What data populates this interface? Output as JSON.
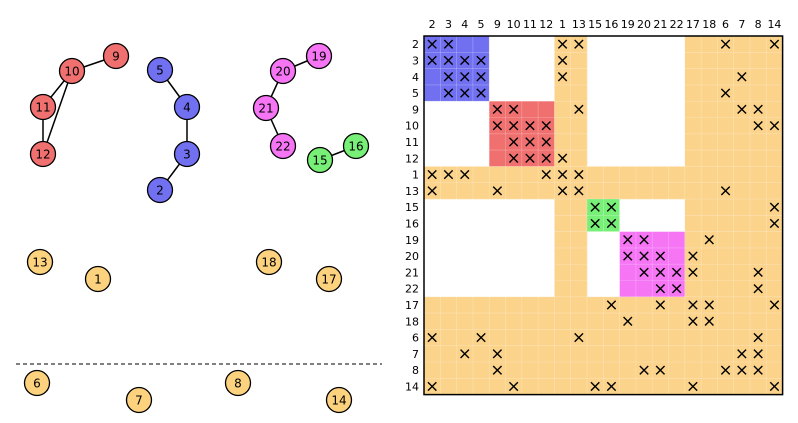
{
  "graph": {
    "nodes": [
      {
        "id": "9",
        "group": "red"
      },
      {
        "id": "10",
        "group": "red"
      },
      {
        "id": "11",
        "group": "red"
      },
      {
        "id": "12",
        "group": "red"
      },
      {
        "id": "5",
        "group": "blue"
      },
      {
        "id": "4",
        "group": "blue"
      },
      {
        "id": "3",
        "group": "blue"
      },
      {
        "id": "2",
        "group": "blue"
      },
      {
        "id": "19",
        "group": "magenta"
      },
      {
        "id": "20",
        "group": "magenta"
      },
      {
        "id": "21",
        "group": "magenta"
      },
      {
        "id": "22",
        "group": "magenta"
      },
      {
        "id": "15",
        "group": "green"
      },
      {
        "id": "16",
        "group": "green"
      },
      {
        "id": "13",
        "group": "orange"
      },
      {
        "id": "1",
        "group": "orange"
      },
      {
        "id": "18",
        "group": "orange"
      },
      {
        "id": "17",
        "group": "orange"
      },
      {
        "id": "6",
        "group": "orange"
      },
      {
        "id": "7",
        "group": "orange"
      },
      {
        "id": "8",
        "group": "orange"
      },
      {
        "id": "14",
        "group": "orange"
      }
    ],
    "edges": [
      [
        "10",
        "9"
      ],
      [
        "10",
        "11"
      ],
      [
        "10",
        "12"
      ],
      [
        "11",
        "12"
      ],
      [
        "5",
        "4"
      ],
      [
        "4",
        "3"
      ],
      [
        "3",
        "2"
      ],
      [
        "20",
        "19"
      ],
      [
        "20",
        "21"
      ],
      [
        "21",
        "22"
      ],
      [
        "15",
        "16"
      ]
    ]
  },
  "matrix": {
    "order": [
      "2",
      "3",
      "4",
      "5",
      "9",
      "10",
      "11",
      "12",
      "1",
      "13",
      "15",
      "16",
      "19",
      "20",
      "21",
      "22",
      "17",
      "18",
      "6",
      "7",
      "8",
      "14"
    ],
    "row_labels": [
      "2",
      "3",
      "4",
      "5",
      "9",
      "10",
      "11",
      "12",
      "1",
      "13",
      "15",
      "16",
      "19",
      "20",
      "21",
      "22",
      "17",
      "18",
      "6",
      "7",
      "8",
      "14"
    ],
    "column_labels": [
      "2",
      "3",
      "4",
      "5",
      "9",
      "10",
      "11",
      "12",
      "1",
      "13",
      "15",
      "16",
      "19",
      "20",
      "21",
      "22",
      "17",
      "18",
      "6",
      "7",
      "8",
      "14"
    ],
    "marker": "×",
    "entries": [
      [
        "2",
        "2"
      ],
      [
        "2",
        "3"
      ],
      [
        "2",
        "1"
      ],
      [
        "2",
        "13"
      ],
      [
        "2",
        "6"
      ],
      [
        "2",
        "14"
      ],
      [
        "3",
        "2"
      ],
      [
        "3",
        "3"
      ],
      [
        "3",
        "4"
      ],
      [
        "3",
        "5"
      ],
      [
        "3",
        "1"
      ],
      [
        "4",
        "3"
      ],
      [
        "4",
        "4"
      ],
      [
        "4",
        "5"
      ],
      [
        "4",
        "1"
      ],
      [
        "4",
        "7"
      ],
      [
        "5",
        "3"
      ],
      [
        "5",
        "4"
      ],
      [
        "5",
        "5"
      ],
      [
        "5",
        "6"
      ],
      [
        "9",
        "9"
      ],
      [
        "9",
        "10"
      ],
      [
        "9",
        "13"
      ],
      [
        "9",
        "7"
      ],
      [
        "9",
        "8"
      ],
      [
        "10",
        "9"
      ],
      [
        "10",
        "10"
      ],
      [
        "10",
        "11"
      ],
      [
        "10",
        "12"
      ],
      [
        "10",
        "8"
      ],
      [
        "10",
        "14"
      ],
      [
        "11",
        "10"
      ],
      [
        "11",
        "11"
      ],
      [
        "11",
        "12"
      ],
      [
        "12",
        "10"
      ],
      [
        "12",
        "11"
      ],
      [
        "12",
        "12"
      ],
      [
        "12",
        "1"
      ],
      [
        "1",
        "2"
      ],
      [
        "1",
        "3"
      ],
      [
        "1",
        "4"
      ],
      [
        "1",
        "12"
      ],
      [
        "1",
        "1"
      ],
      [
        "1",
        "13"
      ],
      [
        "13",
        "2"
      ],
      [
        "13",
        "9"
      ],
      [
        "13",
        "1"
      ],
      [
        "13",
        "13"
      ],
      [
        "13",
        "6"
      ],
      [
        "15",
        "15"
      ],
      [
        "15",
        "16"
      ],
      [
        "15",
        "14"
      ],
      [
        "16",
        "15"
      ],
      [
        "16",
        "16"
      ],
      [
        "16",
        "14"
      ],
      [
        "19",
        "19"
      ],
      [
        "19",
        "20"
      ],
      [
        "19",
        "18"
      ],
      [
        "20",
        "19"
      ],
      [
        "20",
        "20"
      ],
      [
        "20",
        "21"
      ],
      [
        "20",
        "17"
      ],
      [
        "21",
        "20"
      ],
      [
        "21",
        "21"
      ],
      [
        "21",
        "22"
      ],
      [
        "21",
        "17"
      ],
      [
        "21",
        "8"
      ],
      [
        "22",
        "21"
      ],
      [
        "22",
        "22"
      ],
      [
        "22",
        "8"
      ],
      [
        "17",
        "16"
      ],
      [
        "17",
        "21"
      ],
      [
        "17",
        "17"
      ],
      [
        "17",
        "18"
      ],
      [
        "17",
        "14"
      ],
      [
        "18",
        "19"
      ],
      [
        "18",
        "17"
      ],
      [
        "18",
        "18"
      ],
      [
        "6",
        "2"
      ],
      [
        "6",
        "5"
      ],
      [
        "6",
        "13"
      ],
      [
        "6",
        "8"
      ],
      [
        "7",
        "4"
      ],
      [
        "7",
        "9"
      ],
      [
        "7",
        "7"
      ],
      [
        "7",
        "8"
      ],
      [
        "8",
        "9"
      ],
      [
        "8",
        "20"
      ],
      [
        "8",
        "21"
      ],
      [
        "8",
        "6"
      ],
      [
        "8",
        "7"
      ],
      [
        "8",
        "8"
      ],
      [
        "14",
        "2"
      ],
      [
        "14",
        "10"
      ],
      [
        "14",
        "15"
      ],
      [
        "14",
        "16"
      ],
      [
        "14",
        "17"
      ],
      [
        "14",
        "14"
      ]
    ],
    "blocks": [
      {
        "group": "blue",
        "from": "2",
        "to": "5"
      },
      {
        "group": "red",
        "from": "9",
        "to": "12"
      },
      {
        "group": "green",
        "from": "15",
        "to": "16"
      },
      {
        "group": "magenta",
        "from": "19",
        "to": "22"
      }
    ],
    "border_band": {
      "group": "orange",
      "separator_nodes": [
        "1",
        "13",
        "17",
        "18",
        "6",
        "7",
        "8",
        "14"
      ]
    }
  },
  "colors": {
    "red": "#f07070",
    "blue": "#7070f0",
    "magenta": "#f575f5",
    "green": "#78f078",
    "orange": "#fcd27e",
    "band": "#fbd38a",
    "edge": "#000000",
    "frame": "#000000"
  }
}
